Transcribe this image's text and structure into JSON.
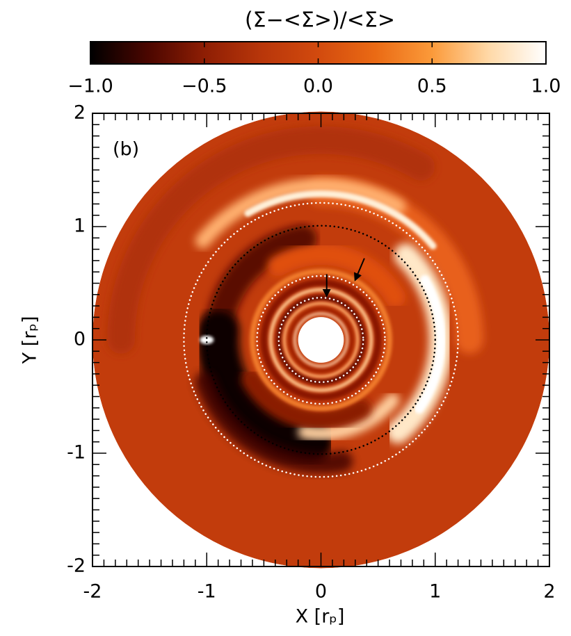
{
  "chart_data": {
    "type": "density-map",
    "colorbar_title": "(Σ−<Σ>)/<Σ>",
    "colormap": [
      "#000000",
      "#4a0600",
      "#8e1e04",
      "#b8360a",
      "#d24a0e",
      "#ea6a14",
      "#fb9a3a",
      "#ffd9a8",
      "#ffffff"
    ],
    "clim": [
      -1.0,
      1.0
    ],
    "cticks": [
      {
        "value": -1.0,
        "label": "−1.0"
      },
      {
        "value": -0.5,
        "label": "−0.5"
      },
      {
        "value": 0.0,
        "label": "0.0"
      },
      {
        "value": 0.5,
        "label": "0.5"
      },
      {
        "value": 1.0,
        "label": "1.0"
      }
    ],
    "panel_label": "(b)",
    "xlabel": "X [rₚ]",
    "ylabel": "Y [rₚ]",
    "xlim": [
      -2,
      2
    ],
    "ylim": [
      -2,
      2
    ],
    "xticks": [
      -2,
      -1,
      0,
      1,
      2
    ],
    "yticks": [
      -2,
      -1,
      0,
      1,
      2
    ],
    "disk_inner_radius": 0.2,
    "disk_outer_radius": 2,
    "dotted_circles": [
      {
        "radius": 1.2,
        "color": "#ffffff"
      },
      {
        "radius": 1.0,
        "color": "#000000"
      },
      {
        "radius": 0.56,
        "color": "#ffffff"
      },
      {
        "radius": 0.37,
        "color": "#ffffff"
      }
    ]
  }
}
